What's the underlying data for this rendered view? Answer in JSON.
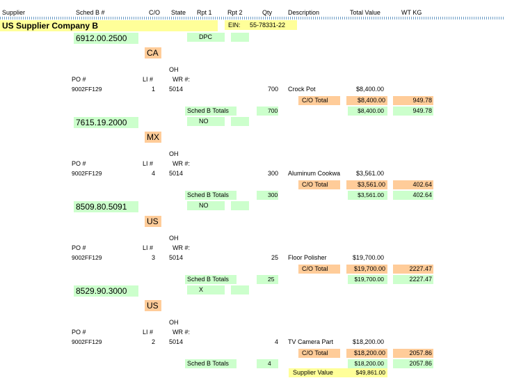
{
  "header": {
    "supplier": "Supplier",
    "sched_b": "Sched B #",
    "co": "C/O",
    "state": "State",
    "rpt1": "Rpt 1",
    "rpt2": "Rpt 2",
    "qty": "Qty",
    "description": "Description",
    "total_value": "Total Value",
    "wt_kg": "WT KG"
  },
  "supplier": {
    "name": "US Supplier Company B",
    "ein_label": "EIN:",
    "ein": "55-78331-22"
  },
  "labels": {
    "po": "PO #",
    "li": "LI #",
    "wr": "WR #:",
    "co_total": "C/O Total",
    "sched_b_totals": "Sched B Totals",
    "supplier_value": "Supplier Value"
  },
  "groups": [
    {
      "sched_b": "6912.00.2500",
      "rpt1": "DPC",
      "country": "CA",
      "state": "OH",
      "po": "9002FF129",
      "li": "1",
      "wr": "5014",
      "qty": "700",
      "description": "Crock Pot",
      "value": "$8,400.00",
      "co_total_value": "$8,400.00",
      "co_total_wt": "949.78",
      "sb_qty": "700",
      "sb_value": "$8,400.00",
      "sb_wt": "949.78"
    },
    {
      "sched_b": "7615.19.2000",
      "rpt1": "NO",
      "country": "MX",
      "state": "OH",
      "po": "9002FF129",
      "li": "4",
      "wr": "5014",
      "qty": "300",
      "description": "Aluminum Cookwa",
      "value": "$3,561.00",
      "co_total_value": "$3,561.00",
      "co_total_wt": "402.64",
      "sb_qty": "300",
      "sb_value": "$3,561.00",
      "sb_wt": "402.64"
    },
    {
      "sched_b": "8509.80.5091",
      "rpt1": "NO",
      "country": "US",
      "state": "OH",
      "po": "9002FF129",
      "li": "3",
      "wr": "5014",
      "qty": "25",
      "description": "Floor Polisher",
      "value": "$19,700.00",
      "co_total_value": "$19,700.00",
      "co_total_wt": "2227.47",
      "sb_qty": "25",
      "sb_value": "$19,700.00",
      "sb_wt": "2227.47"
    },
    {
      "sched_b": "8529.90.3000",
      "rpt1": "X",
      "country": "US",
      "state": "OH",
      "po": "9002FF129",
      "li": "2",
      "wr": "5014",
      "qty": "4",
      "description": "TV Camera Part",
      "value": "$18,200.00",
      "co_total_value": "$18,200.00",
      "co_total_wt": "2057.86",
      "sb_qty": "4",
      "sb_value": "$18,200.00",
      "sb_wt": "2057.86"
    }
  ],
  "supplier_value": "$49,861.00",
  "colors": {
    "green": "#ccffcc",
    "orange": "#ffcc99",
    "yellow": "#ffff99"
  }
}
